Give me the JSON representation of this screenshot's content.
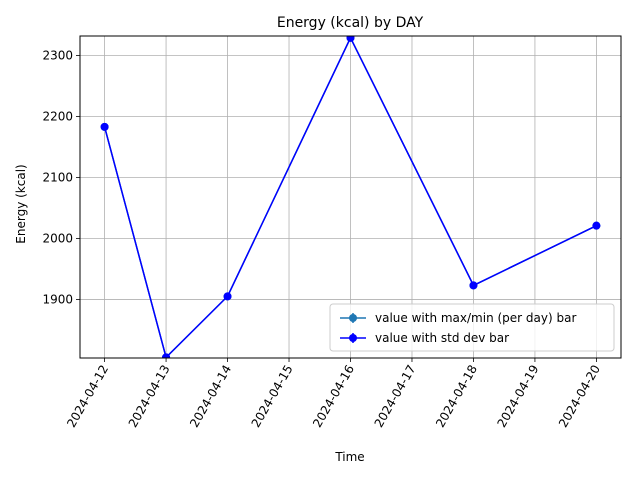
{
  "chart_data": {
    "type": "line",
    "title": "Energy (kcal) by DAY",
    "xlabel": "Time",
    "ylabel": "Energy (kcal)",
    "x_ticks": [
      "2024-04-12",
      "2024-04-13",
      "2024-04-14",
      "2024-04-15",
      "2024-04-16",
      "2024-04-17",
      "2024-04-18",
      "2024-04-19",
      "2024-04-20"
    ],
    "y_ticks": [
      "1900",
      "2000",
      "2100",
      "2200",
      "2300"
    ],
    "xlim": [
      "2024-04-11T14:24",
      "2024-04-20T09:36"
    ],
    "ylim": [
      1804,
      2332
    ],
    "grid": true,
    "legend_position": "lower-right",
    "series": [
      {
        "name": "value with max/min (per day) bar",
        "color": "#1f77b4",
        "x": [
          "2024-04-12",
          "2024-04-13",
          "2024-04-14",
          "2024-04-16",
          "2024-04-18",
          "2024-04-20"
        ],
        "y": [
          2183,
          1805,
          1905,
          2329,
          1923,
          2021
        ]
      },
      {
        "name": "value with std dev bar",
        "color": "#0000ff",
        "x": [
          "2024-04-12",
          "2024-04-13",
          "2024-04-14",
          "2024-04-16",
          "2024-04-18",
          "2024-04-20"
        ],
        "y": [
          2183,
          1805,
          1905,
          2329,
          1923,
          2021
        ]
      }
    ]
  }
}
